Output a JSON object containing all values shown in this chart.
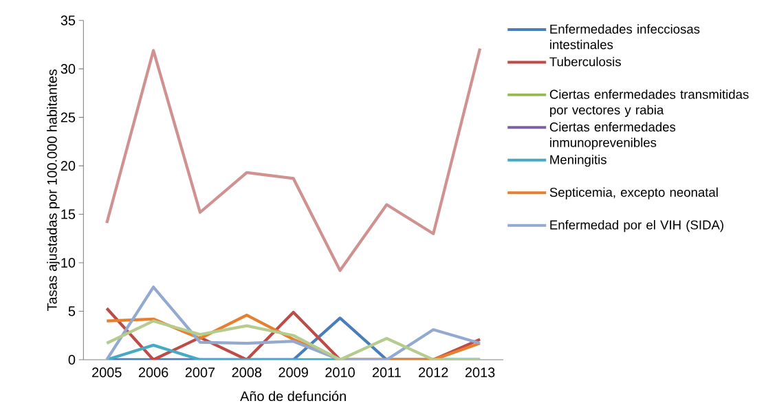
{
  "chart_data": {
    "type": "line",
    "xlabel": "Año de defunción",
    "ylabel": "Tasas ajustadas por 100.000 habitantes",
    "categories": [
      "2005",
      "2006",
      "2007",
      "2008",
      "2009",
      "2010",
      "2011",
      "2012",
      "2013"
    ],
    "ylim": [
      0,
      35
    ],
    "yticks": [
      0,
      5,
      10,
      15,
      20,
      25,
      30,
      35
    ],
    "grid": false,
    "legend": "right",
    "marker": "none",
    "line_style": "solid",
    "series": [
      {
        "name": "Enfermedades infecciosas intestinales",
        "color": "#4a7ebb",
        "values": [
          0,
          0,
          0,
          0,
          0,
          4.3,
          0,
          0,
          0
        ]
      },
      {
        "name": "Tuberculosis",
        "color": "#be4b48",
        "values": [
          5.3,
          0,
          2.3,
          0,
          4.9,
          0,
          0,
          0,
          2.1
        ]
      },
      {
        "name": "Ciertas enfermedades transmitidas por vectores y rabia",
        "color": "#98b954",
        "values": [
          null,
          null,
          null,
          null,
          null,
          null,
          null,
          null,
          null
        ]
      },
      {
        "name": "Ciertas enfermedades inmunoprevenibles",
        "color": "#7d60a0",
        "values": [
          null,
          null,
          null,
          null,
          null,
          null,
          null,
          null,
          null
        ]
      },
      {
        "name": "Meningitis",
        "color": "#46aac5",
        "values": [
          0,
          1.5,
          0,
          0,
          0,
          0,
          0,
          0,
          0
        ]
      },
      {
        "name": "Septicemia, excepto neonatal",
        "color": "#e6802f",
        "values": [
          4.0,
          4.2,
          2.2,
          4.6,
          2.1,
          0,
          0,
          0,
          1.7
        ]
      },
      {
        "name": "Enfermedad por el VIH (SIDA)",
        "color": "#93a9d0",
        "values": [
          0,
          7.5,
          1.8,
          1.7,
          1.9,
          0,
          0,
          3.1,
          1.7
        ]
      },
      {
        "color": "#d09191",
        "values": [
          14.1,
          31.9,
          15.2,
          19.3,
          18.7,
          9.2,
          16.0,
          13.0,
          32.1
        ]
      },
      {
        "color": "#b6cc8e",
        "values": [
          1.7,
          4.0,
          2.6,
          3.5,
          2.5,
          0,
          2.2,
          0,
          0
        ]
      }
    ]
  }
}
